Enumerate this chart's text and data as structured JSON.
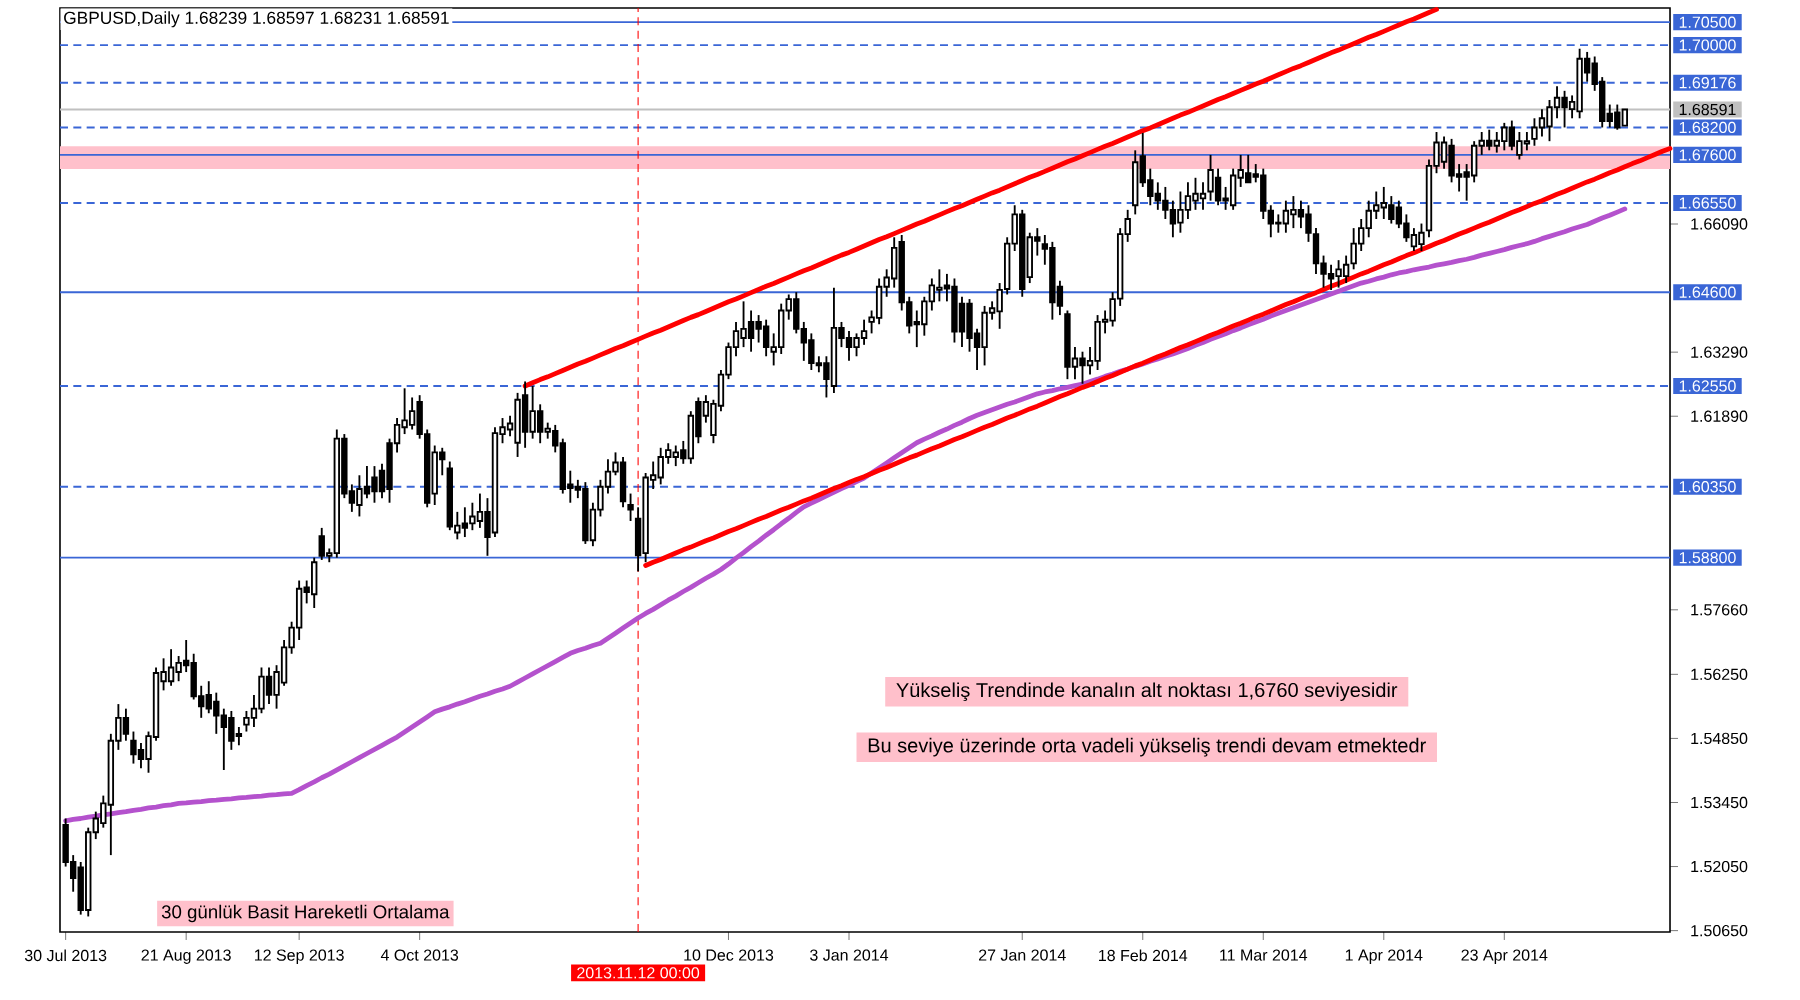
{
  "chart_data": {
    "type": "candlestick",
    "title": "GBPUSD,Daily 1.68239 1.68597 1.68231 1.68591",
    "color": "#000000",
    "categories": [
      "30 Jul 2013",
      null,
      null,
      null,
      null,
      null,
      null,
      null,
      null,
      null,
      null,
      null,
      null,
      null,
      null,
      null,
      "21 Aug 2013",
      null,
      null,
      null,
      null,
      null,
      null,
      null,
      null,
      null,
      null,
      null,
      null,
      null,
      null,
      "12 Sep 2013",
      null,
      null,
      null,
      null,
      null,
      null,
      null,
      null,
      null,
      null,
      null,
      null,
      null,
      null,
      null,
      "4 Oct 2013",
      null,
      null,
      null,
      null,
      null,
      null,
      null,
      null,
      null,
      null,
      null,
      null,
      null,
      null,
      null,
      null,
      null,
      null,
      null,
      null,
      null,
      null,
      null,
      null,
      null,
      null,
      null,
      null,
      "2013.11.12 00:00",
      null,
      null,
      null,
      null,
      null,
      null,
      null,
      null,
      null,
      null,
      null,
      "10 Dec 2013",
      null,
      null,
      null,
      null,
      null,
      null,
      null,
      null,
      null,
      null,
      null,
      null,
      null,
      null,
      null,
      "3 Jan 2014",
      null,
      null,
      null,
      null,
      null,
      null,
      null,
      null,
      null,
      null,
      null,
      null,
      null,
      null,
      null,
      null,
      null,
      null,
      null,
      null,
      null,
      null,
      "27 Jan 2014",
      null,
      null,
      null,
      null,
      null,
      null,
      null,
      null,
      null,
      null,
      null,
      null,
      null,
      null,
      null,
      "18 Feb 2014",
      null,
      null,
      null,
      null,
      null,
      null,
      null,
      null,
      null,
      null,
      null,
      null,
      null,
      null,
      null,
      "11 Mar 2014",
      null,
      null,
      null,
      null,
      null,
      null,
      null,
      null,
      null,
      null,
      null,
      null,
      null,
      null,
      null,
      "1 Apr 2014",
      null,
      null,
      null,
      null,
      null,
      null,
      null,
      null,
      null,
      null,
      null,
      null,
      null,
      null,
      null,
      "23 Apr 2014",
      null,
      null,
      null,
      null,
      null,
      null,
      null,
      null,
      null,
      null,
      null,
      null,
      null,
      null,
      null,
      null,
      null,
      null,
      null,
      null,
      null,
      null
    ],
    "ohlc": [
      [
        1.5296,
        1.531,
        1.5205,
        1.5215
      ],
      [
        1.5215,
        1.523,
        1.515,
        1.518
      ],
      [
        1.5203,
        1.5215,
        1.51,
        1.511
      ],
      [
        1.511,
        1.529,
        1.5096,
        1.528
      ],
      [
        1.528,
        1.5325,
        1.5265,
        1.531
      ],
      [
        1.53,
        1.536,
        1.529,
        1.5343
      ],
      [
        1.534,
        1.5495,
        1.523,
        1.548
      ],
      [
        1.548,
        1.556,
        1.546,
        1.553
      ],
      [
        1.553,
        1.555,
        1.548,
        1.5495
      ],
      [
        1.548,
        1.55,
        1.543,
        1.545
      ],
      [
        1.546,
        1.5475,
        1.542,
        1.544
      ],
      [
        1.544,
        1.55,
        1.541,
        1.549
      ],
      [
        1.5488,
        1.564,
        1.548,
        1.5628
      ],
      [
        1.561,
        1.566,
        1.559,
        1.563
      ],
      [
        1.561,
        1.568,
        1.56,
        1.564
      ],
      [
        1.563,
        1.5665,
        1.561,
        1.565
      ],
      [
        1.5655,
        1.57,
        1.563,
        1.5645
      ],
      [
        1.565,
        1.567,
        1.557,
        1.5577
      ],
      [
        1.5577,
        1.56,
        1.553,
        1.5555
      ],
      [
        1.558,
        1.561,
        1.554,
        1.555
      ],
      [
        1.5565,
        1.5585,
        1.5495,
        1.5535
      ],
      [
        1.5535,
        1.555,
        1.5416,
        1.551
      ],
      [
        1.553,
        1.5545,
        1.546,
        1.548
      ],
      [
        1.5495,
        1.551,
        1.547,
        1.549
      ],
      [
        1.5515,
        1.5545,
        1.55,
        1.553
      ],
      [
        1.553,
        1.558,
        1.551,
        1.555
      ],
      [
        1.555,
        1.564,
        1.554,
        1.562
      ],
      [
        1.562,
        1.564,
        1.556,
        1.558
      ],
      [
        1.558,
        1.5645,
        1.555,
        1.563
      ],
      [
        1.5607,
        1.57,
        1.56,
        1.5684
      ],
      [
        1.5684,
        1.574,
        1.567,
        1.5727
      ],
      [
        1.5727,
        1.583,
        1.57,
        1.5812
      ],
      [
        1.5815,
        1.583,
        1.578,
        1.5805
      ],
      [
        1.58,
        1.588,
        1.577,
        1.587
      ],
      [
        1.5927,
        1.5945,
        1.5875,
        1.5884
      ],
      [
        1.5884,
        1.59,
        1.587,
        1.589
      ],
      [
        1.589,
        1.616,
        1.588,
        1.614
      ],
      [
        1.614,
        1.615,
        1.601,
        1.602
      ],
      [
        1.6025,
        1.604,
        1.598,
        1.6
      ],
      [
        1.5995,
        1.606,
        1.597,
        1.603
      ],
      [
        1.6035,
        1.608,
        1.601,
        1.602
      ],
      [
        1.6055,
        1.608,
        1.6,
        1.6025
      ],
      [
        1.607,
        1.6085,
        1.601,
        1.6025
      ],
      [
        1.613,
        1.614,
        1.6,
        1.603
      ],
      [
        1.613,
        1.6185,
        1.611,
        1.617
      ],
      [
        1.6165,
        1.625,
        1.615,
        1.618
      ],
      [
        1.617,
        1.623,
        1.616,
        1.62
      ],
      [
        1.622,
        1.6235,
        1.614,
        1.615
      ],
      [
        1.615,
        1.616,
        1.599,
        1.6
      ],
      [
        1.602,
        1.6125,
        1.5995,
        1.611
      ],
      [
        1.611,
        1.612,
        1.606,
        1.6095
      ],
      [
        1.6075,
        1.609,
        1.594,
        1.5948
      ],
      [
        1.5935,
        1.598,
        1.592,
        1.595
      ],
      [
        1.5955,
        1.599,
        1.5925,
        1.5945
      ],
      [
        1.5955,
        1.6,
        1.594,
        1.597
      ],
      [
        1.596,
        1.602,
        1.5945,
        1.598
      ],
      [
        1.598,
        1.601,
        1.5884,
        1.5925
      ],
      [
        1.5935,
        1.6165,
        1.5925,
        1.6152
      ],
      [
        1.615,
        1.6185,
        1.613,
        1.6165
      ],
      [
        1.616,
        1.619,
        1.6145,
        1.6173
      ],
      [
        1.6131,
        1.624,
        1.61,
        1.6225
      ],
      [
        1.6235,
        1.6265,
        1.612,
        1.6155
      ],
      [
        1.6155,
        1.6255,
        1.614,
        1.62
      ],
      [
        1.62,
        1.6215,
        1.613,
        1.6155
      ],
      [
        1.6155,
        1.6175,
        1.614,
        1.6162
      ],
      [
        1.6157,
        1.617,
        1.611,
        1.6125
      ],
      [
        1.613,
        1.614,
        1.602,
        1.603
      ],
      [
        1.604,
        1.607,
        1.6,
        1.6032
      ],
      [
        1.6035,
        1.605,
        1.601,
        1.6028
      ],
      [
        1.603,
        1.6045,
        1.591,
        1.5918
      ],
      [
        1.5918,
        1.6,
        1.5905,
        1.5985
      ],
      [
        1.5985,
        1.605,
        1.597,
        1.6035
      ],
      [
        1.6035,
        1.6095,
        1.602,
        1.6068
      ],
      [
        1.6068,
        1.611,
        1.606,
        1.6088
      ],
      [
        1.6088,
        1.61,
        1.599,
        1.6003
      ],
      [
        1.5995,
        1.602,
        1.596,
        1.5985
      ],
      [
        1.5965,
        1.599,
        1.585,
        1.5885
      ],
      [
        1.589,
        1.6065,
        1.587,
        1.6055
      ],
      [
        1.605,
        1.609,
        1.603,
        1.606
      ],
      [
        1.6055,
        1.612,
        1.604,
        1.61
      ],
      [
        1.61,
        1.613,
        1.6085,
        1.6115
      ],
      [
        1.61,
        1.6125,
        1.608,
        1.611
      ],
      [
        1.6115,
        1.6135,
        1.6085,
        1.6097
      ],
      [
        1.6097,
        1.62,
        1.6085,
        1.619
      ],
      [
        1.622,
        1.623,
        1.613,
        1.6145
      ],
      [
        1.619,
        1.6235,
        1.6175,
        1.622
      ],
      [
        1.6148,
        1.6225,
        1.613,
        1.6216
      ],
      [
        1.6212,
        1.629,
        1.62,
        1.628
      ],
      [
        1.628,
        1.635,
        1.627,
        1.634
      ],
      [
        1.634,
        1.6395,
        1.632,
        1.6375
      ],
      [
        1.636,
        1.644,
        1.634,
        1.638
      ],
      [
        1.6395,
        1.642,
        1.633,
        1.636
      ],
      [
        1.6395,
        1.641,
        1.635,
        1.638
      ],
      [
        1.6385,
        1.64,
        1.632,
        1.634
      ],
      [
        1.633,
        1.637,
        1.63,
        1.634
      ],
      [
        1.634,
        1.6435,
        1.6325,
        1.642
      ],
      [
        1.642,
        1.6455,
        1.64,
        1.6445
      ],
      [
        1.6445,
        1.646,
        1.637,
        1.638
      ],
      [
        1.638,
        1.6395,
        1.631,
        1.635
      ],
      [
        1.6355,
        1.637,
        1.629,
        1.6305
      ],
      [
        1.6305,
        1.632,
        1.6285,
        1.63
      ],
      [
        1.6305,
        1.632,
        1.623,
        1.627
      ],
      [
        1.6255,
        1.647,
        1.624,
        1.6382
      ],
      [
        1.6382,
        1.6395,
        1.634,
        1.636
      ],
      [
        1.636,
        1.6375,
        1.631,
        1.634
      ],
      [
        1.634,
        1.637,
        1.632,
        1.636
      ],
      [
        1.636,
        1.64,
        1.6345,
        1.6375
      ],
      [
        1.6395,
        1.642,
        1.637,
        1.6405
      ],
      [
        1.6404,
        1.649,
        1.639,
        1.6472
      ],
      [
        1.6472,
        1.651,
        1.645,
        1.6492
      ],
      [
        1.649,
        1.658,
        1.647,
        1.6557
      ],
      [
        1.657,
        1.6585,
        1.642,
        1.6438
      ],
      [
        1.6438,
        1.645,
        1.637,
        1.6387
      ],
      [
        1.6395,
        1.642,
        1.634,
        1.639
      ],
      [
        1.639,
        1.645,
        1.6365,
        1.644
      ],
      [
        1.644,
        1.649,
        1.642,
        1.6475
      ],
      [
        1.6465,
        1.651,
        1.644,
        1.647
      ],
      [
        1.6475,
        1.65,
        1.644,
        1.6468
      ],
      [
        1.6472,
        1.649,
        1.635,
        1.6374
      ],
      [
        1.6435,
        1.645,
        1.634,
        1.6374
      ],
      [
        1.6435,
        1.6445,
        1.633,
        1.636
      ],
      [
        1.637,
        1.638,
        1.629,
        1.634
      ],
      [
        1.634,
        1.643,
        1.63,
        1.6415
      ],
      [
        1.6415,
        1.644,
        1.64,
        1.6425
      ],
      [
        1.6418,
        1.648,
        1.638,
        1.6465
      ],
      [
        1.6467,
        1.658,
        1.6455,
        1.6566
      ],
      [
        1.6566,
        1.665,
        1.655,
        1.663
      ],
      [
        1.663,
        1.664,
        1.645,
        1.6467
      ],
      [
        1.6493,
        1.659,
        1.648,
        1.658
      ],
      [
        1.658,
        1.66,
        1.654,
        1.6572
      ],
      [
        1.6565,
        1.6585,
        1.652,
        1.6555
      ],
      [
        1.6557,
        1.657,
        1.64,
        1.6438
      ],
      [
        1.6472,
        1.6485,
        1.641,
        1.643
      ],
      [
        1.6412,
        1.642,
        1.627,
        1.6297
      ],
      [
        1.6297,
        1.634,
        1.627,
        1.6315
      ],
      [
        1.6315,
        1.633,
        1.626,
        1.63
      ],
      [
        1.63,
        1.634,
        1.628,
        1.631
      ],
      [
        1.631,
        1.641,
        1.629,
        1.6395
      ],
      [
        1.6395,
        1.642,
        1.637,
        1.64
      ],
      [
        1.6398,
        1.646,
        1.6385,
        1.6445
      ],
      [
        1.6446,
        1.66,
        1.643,
        1.6587
      ],
      [
        1.6587,
        1.664,
        1.657,
        1.662
      ],
      [
        1.665,
        1.677,
        1.663,
        1.6744
      ],
      [
        1.6757,
        1.6808,
        1.669,
        1.67
      ],
      [
        1.6705,
        1.673,
        1.665,
        1.667
      ],
      [
        1.6675,
        1.67,
        1.664,
        1.666
      ],
      [
        1.666,
        1.669,
        1.662,
        1.664
      ],
      [
        1.664,
        1.666,
        1.658,
        1.661
      ],
      [
        1.6612,
        1.668,
        1.659,
        1.664
      ],
      [
        1.664,
        1.67,
        1.662,
        1.667
      ],
      [
        1.666,
        1.671,
        1.664,
        1.6675
      ],
      [
        1.6665,
        1.67,
        1.664,
        1.6675
      ],
      [
        1.668,
        1.676,
        1.666,
        1.6727
      ],
      [
        1.671,
        1.673,
        1.665,
        1.666
      ],
      [
        1.6665,
        1.669,
        1.664,
        1.666
      ],
      [
        1.665,
        1.673,
        1.664,
        1.6715
      ],
      [
        1.671,
        1.676,
        1.669,
        1.6727
      ],
      [
        1.672,
        1.676,
        1.67,
        1.67
      ],
      [
        1.6718,
        1.674,
        1.67,
        1.6712
      ],
      [
        1.6715,
        1.673,
        1.662,
        1.6638
      ],
      [
        1.6638,
        1.665,
        1.658,
        1.661
      ],
      [
        1.6612,
        1.663,
        1.659,
        1.661
      ],
      [
        1.661,
        1.666,
        1.659,
        1.6638
      ],
      [
        1.663,
        1.667,
        1.66,
        1.664
      ],
      [
        1.664,
        1.666,
        1.66,
        1.6625
      ],
      [
        1.663,
        1.665,
        1.657,
        1.659
      ],
      [
        1.6587,
        1.66,
        1.65,
        1.6523
      ],
      [
        1.6523,
        1.654,
        1.647,
        1.65
      ],
      [
        1.65,
        1.652,
        1.6465,
        1.649
      ],
      [
        1.6495,
        1.653,
        1.647,
        1.651
      ],
      [
        1.6495,
        1.654,
        1.648,
        1.652
      ],
      [
        1.6523,
        1.66,
        1.651,
        1.6566
      ],
      [
        1.6566,
        1.662,
        1.655,
        1.66
      ],
      [
        1.66,
        1.666,
        1.658,
        1.6638
      ],
      [
        1.6638,
        1.668,
        1.662,
        1.665
      ],
      [
        1.6645,
        1.669,
        1.662,
        1.6655
      ],
      [
        1.665,
        1.667,
        1.661,
        1.662
      ],
      [
        1.6645,
        1.666,
        1.66,
        1.661
      ],
      [
        1.661,
        1.663,
        1.657,
        1.658
      ],
      [
        1.656,
        1.66,
        1.655,
        1.6585
      ],
      [
        1.6565,
        1.661,
        1.655,
        1.659
      ],
      [
        1.6595,
        1.675,
        1.658,
        1.6736
      ],
      [
        1.6736,
        1.681,
        1.672,
        1.6787
      ],
      [
        1.6745,
        1.68,
        1.673,
        1.6787
      ],
      [
        1.678,
        1.6795,
        1.67,
        1.6715
      ],
      [
        1.6718,
        1.674,
        1.668,
        1.6712
      ],
      [
        1.6722,
        1.674,
        1.666,
        1.6712
      ],
      [
        1.6715,
        1.679,
        1.67,
        1.678
      ],
      [
        1.678,
        1.681,
        1.676,
        1.6791
      ],
      [
        1.6791,
        1.6815,
        1.677,
        1.678
      ],
      [
        1.678,
        1.681,
        1.6765,
        1.6791
      ],
      [
        1.679,
        1.683,
        1.677,
        1.682
      ],
      [
        1.682,
        1.6835,
        1.677,
        1.678
      ],
      [
        1.676,
        1.681,
        1.675,
        1.679
      ],
      [
        1.6785,
        1.681,
        1.677,
        1.679
      ],
      [
        1.6795,
        1.684,
        1.678,
        1.682
      ],
      [
        1.682,
        1.686,
        1.68,
        1.684
      ],
      [
        1.6822,
        1.688,
        1.679,
        1.6864
      ],
      [
        1.6864,
        1.691,
        1.684,
        1.6885
      ],
      [
        1.6885,
        1.69,
        1.682,
        1.6864
      ],
      [
        1.686,
        1.689,
        1.684,
        1.6876
      ],
      [
        1.6855,
        1.6992,
        1.684,
        1.697
      ],
      [
        1.697,
        1.6985,
        1.692,
        1.694
      ],
      [
        1.696,
        1.6975,
        1.69,
        1.6915
      ],
      [
        1.692,
        1.693,
        1.682,
        1.6834
      ],
      [
        1.685,
        1.687,
        1.682,
        1.6834
      ],
      [
        1.6853,
        1.687,
        1.6815,
        1.682
      ],
      [
        1.68239,
        1.68597,
        1.68231,
        1.68591
      ],
      null,
      null,
      null,
      null,
      null,
      null
    ],
    "ylim": [
      1.5062,
      1.7081
    ],
    "yticks": [
      {
        "value": 1.6609,
        "label": "1.66090"
      },
      {
        "value": 1.6329,
        "label": "1.63290"
      },
      {
        "value": 1.6189,
        "label": "1.61890"
      },
      {
        "value": 1.5766,
        "label": "1.57660"
      },
      {
        "value": 1.5625,
        "label": "1.56250"
      },
      {
        "value": 1.5485,
        "label": "1.54850"
      },
      {
        "value": 1.5345,
        "label": "1.53450"
      },
      {
        "value": 1.5205,
        "label": "1.52050"
      },
      {
        "value": 1.5065,
        "label": "1.50650"
      }
    ],
    "series": [
      {
        "type": "line",
        "color": "#b452cd",
        "values": [
          1.5305,
          1.5308,
          1.531,
          1.5313,
          1.5315,
          1.5318,
          1.532,
          1.5323,
          1.5325,
          1.5328,
          1.533,
          1.5333,
          1.5335,
          1.5338,
          1.534,
          1.5343,
          1.5344,
          1.5346,
          1.5347,
          1.5349,
          1.535,
          1.5352,
          1.5353,
          1.5355,
          1.5356,
          1.5358,
          1.5359,
          1.5361,
          1.5362,
          1.5364,
          1.5365,
          1.5373,
          1.5382,
          1.539,
          1.5399,
          1.5407,
          1.5416,
          1.5425,
          1.5434,
          1.5443,
          1.5452,
          1.5461,
          1.547,
          1.5479,
          1.5488,
          1.5499,
          1.551,
          1.5521,
          1.5532,
          1.5543,
          1.5549,
          1.5554,
          1.556,
          1.5565,
          1.5571,
          1.5577,
          1.5582,
          1.5588,
          1.5593,
          1.5599,
          1.5608,
          1.5617,
          1.5626,
          1.5635,
          1.5644,
          1.5653,
          1.5662,
          1.5671,
          1.5677,
          1.5682,
          1.5688,
          1.5693,
          1.5704,
          1.5715,
          1.5726,
          1.5737,
          1.5748,
          1.5758,
          1.5767,
          1.5777,
          1.5787,
          1.5796,
          1.5806,
          1.5815,
          1.5825,
          1.5835,
          1.5844,
          1.5854,
          1.5866,
          1.5879,
          1.5891,
          1.5904,
          1.5916,
          1.5929,
          1.5941,
          1.5954,
          1.5966,
          1.5979,
          1.5991,
          1.5999,
          1.6007,
          1.6015,
          1.6023,
          1.6031,
          1.6038,
          1.6046,
          1.6054,
          1.6065,
          1.6076,
          1.6087,
          1.6098,
          1.6109,
          1.612,
          1.6131,
          1.6139,
          1.6146,
          1.6154,
          1.6161,
          1.6169,
          1.6176,
          1.6184,
          1.6191,
          1.6197,
          1.6203,
          1.6209,
          1.6215,
          1.622,
          1.6226,
          1.6232,
          1.6238,
          1.6242,
          1.6245,
          1.6249,
          1.6252,
          1.6256,
          1.6259,
          1.6265,
          1.627,
          1.6276,
          1.6281,
          1.6287,
          1.6292,
          1.6298,
          1.6303,
          1.6309,
          1.6314,
          1.632,
          1.6325,
          1.6331,
          1.6337,
          1.6344,
          1.635,
          1.6357,
          1.6363,
          1.6369,
          1.6376,
          1.6382,
          1.6389,
          1.6395,
          1.6401,
          1.6408,
          1.6414,
          1.642,
          1.6426,
          1.6432,
          1.6438,
          1.6444,
          1.645,
          1.6456,
          1.6462,
          1.6468,
          1.6474,
          1.648,
          1.6484,
          1.6489,
          1.6493,
          1.6498,
          1.6502,
          1.6505,
          1.6509,
          1.6512,
          1.6515,
          1.6519,
          1.6522,
          1.6525,
          1.6529,
          1.6532,
          1.6536,
          1.6541,
          1.6545,
          1.6549,
          1.6553,
          1.6558,
          1.6562,
          1.6566,
          1.6571,
          1.6577,
          1.6582,
          1.6587,
          1.6592,
          1.6598,
          1.6603,
          1.6608,
          1.6615,
          1.6622,
          1.6628,
          1.6635,
          1.6642,
          null,
          null,
          null,
          null,
          null,
          null
        ]
      },
      {
        "type": "line",
        "color": "#ff0000",
        "values": [
          null,
          null,
          null,
          null,
          null,
          null,
          null,
          null,
          null,
          null,
          null,
          null,
          null,
          null,
          null,
          null,
          null,
          null,
          null,
          null,
          null,
          null,
          null,
          null,
          null,
          null,
          null,
          null,
          null,
          null,
          null,
          null,
          null,
          null,
          null,
          null,
          null,
          null,
          null,
          null,
          null,
          null,
          null,
          null,
          null,
          null,
          null,
          null,
          null,
          null,
          null,
          null,
          null,
          null,
          null,
          null,
          null,
          null,
          null,
          null,
          null,
          1.6255,
          1.6262,
          1.6269,
          1.6275,
          1.6282,
          1.6289,
          1.6296,
          1.6303,
          1.6309,
          1.6316,
          1.6323,
          1.633,
          1.6337,
          1.6343,
          1.635,
          1.6357,
          1.6364,
          1.6371,
          1.6377,
          1.6384,
          1.6391,
          1.6398,
          1.6405,
          1.6411,
          1.6418,
          1.6425,
          1.6432,
          1.6439,
          1.6445,
          1.6452,
          1.6459,
          1.6466,
          1.6473,
          1.6479,
          1.6486,
          1.6493,
          1.65,
          1.6507,
          1.6513,
          1.652,
          1.6527,
          1.6534,
          1.6541,
          1.6547,
          1.6554,
          1.6561,
          1.6568,
          1.6575,
          1.6581,
          1.6588,
          1.6595,
          1.6602,
          1.6609,
          1.6615,
          1.6622,
          1.6629,
          1.6636,
          1.6643,
          1.6649,
          1.6656,
          1.6663,
          1.667,
          1.6677,
          1.6683,
          1.669,
          1.6697,
          1.6704,
          1.6711,
          1.6717,
          1.6724,
          1.6731,
          1.6738,
          1.6745,
          1.6751,
          1.6758,
          1.6765,
          1.6772,
          1.6779,
          1.6785,
          1.6792,
          1.6799,
          1.6806,
          1.6813,
          1.6819,
          1.6826,
          1.6833,
          1.684,
          1.6847,
          1.6853,
          1.686,
          1.6867,
          1.6874,
          1.6881,
          1.6887,
          1.6894,
          1.6901,
          1.6908,
          1.6915,
          1.6921,
          1.6928,
          1.6935,
          1.6942,
          1.6949,
          1.6955,
          1.6962,
          1.6969,
          1.6976,
          1.6983,
          1.6989,
          1.6996,
          1.7003,
          1.701,
          1.7017,
          1.7023,
          1.703,
          1.7037,
          1.7044,
          1.7051,
          1.7057,
          1.7064,
          1.7071,
          1.7078,
          null,
          null,
          null,
          null,
          null,
          null,
          null,
          null,
          null,
          null,
          null,
          null,
          null,
          null,
          null,
          null,
          null,
          null,
          null,
          null,
          null,
          null,
          null,
          null,
          null,
          null,
          null,
          null,
          null,
          null,
          null
        ]
      },
      {
        "type": "line",
        "color": "#ff0000",
        "values": [
          null,
          null,
          null,
          null,
          null,
          null,
          null,
          null,
          null,
          null,
          null,
          null,
          null,
          null,
          null,
          null,
          null,
          null,
          null,
          null,
          null,
          null,
          null,
          null,
          null,
          null,
          null,
          null,
          null,
          null,
          null,
          null,
          null,
          null,
          null,
          null,
          null,
          null,
          null,
          null,
          null,
          null,
          null,
          null,
          null,
          null,
          null,
          null,
          null,
          null,
          null,
          null,
          null,
          null,
          null,
          null,
          null,
          null,
          null,
          null,
          null,
          null,
          null,
          null,
          null,
          null,
          null,
          null,
          null,
          null,
          null,
          null,
          null,
          null,
          null,
          null,
          null,
          1.5863,
          1.587,
          1.5876,
          1.5883,
          1.589,
          1.5897,
          1.5903,
          1.591,
          1.5917,
          1.5923,
          1.593,
          1.5937,
          1.5943,
          1.595,
          1.5957,
          1.5964,
          1.597,
          1.5977,
          1.5984,
          1.599,
          1.5997,
          1.6004,
          1.601,
          1.6017,
          1.6024,
          1.6031,
          1.6037,
          1.6044,
          1.6051,
          1.6057,
          1.6064,
          1.6071,
          1.6077,
          1.6084,
          1.6091,
          1.6098,
          1.6104,
          1.6111,
          1.6118,
          1.6124,
          1.6131,
          1.6138,
          1.6144,
          1.6151,
          1.6158,
          1.6165,
          1.6171,
          1.6178,
          1.6185,
          1.6191,
          1.6198,
          1.6205,
          1.6211,
          1.6218,
          1.6225,
          1.6232,
          1.6238,
          1.6245,
          1.6252,
          1.6258,
          1.6265,
          1.6272,
          1.6278,
          1.6285,
          1.6292,
          1.6299,
          1.6305,
          1.6312,
          1.6319,
          1.6325,
          1.6332,
          1.6339,
          1.6345,
          1.6352,
          1.6359,
          1.6366,
          1.6372,
          1.6379,
          1.6386,
          1.6392,
          1.6399,
          1.6406,
          1.6412,
          1.6419,
          1.6426,
          1.6433,
          1.6439,
          1.6446,
          1.6453,
          1.6459,
          1.6466,
          1.6473,
          1.6479,
          1.6486,
          1.6493,
          1.65,
          1.6506,
          1.6513,
          1.652,
          1.6526,
          1.6533,
          1.654,
          1.6546,
          1.6553,
          1.656,
          1.6567,
          1.6573,
          1.658,
          1.6587,
          1.6593,
          1.66,
          1.6607,
          1.6613,
          1.662,
          1.6627,
          1.6634,
          1.664,
          1.6647,
          1.6654,
          1.666,
          1.6667,
          1.6674,
          1.668,
          1.6687,
          1.6694,
          1.6701,
          1.6707,
          1.6714,
          1.6721,
          1.6727,
          1.6734,
          1.6741,
          1.6747,
          1.6754,
          1.6761,
          1.6768,
          1.6774
        ]
      }
    ],
    "bands": [
      {
        "axis": "y",
        "from": 1.6729,
        "to": 1.6779,
        "color": "#ffc0cb"
      }
    ],
    "ref_lines": [
      {
        "axis": "y",
        "value": 1.705,
        "label": "1.70500",
        "color": "#3a66d6",
        "line_style": "solid"
      },
      {
        "axis": "y",
        "value": 1.7,
        "label": "1.70000",
        "color": "#3a66d6",
        "line_style": "dashed"
      },
      {
        "axis": "y",
        "value": 1.69176,
        "label": "1.69176",
        "color": "#3a66d6",
        "line_style": "dashed"
      },
      {
        "axis": "y",
        "value": 1.68591,
        "label": "1.68591",
        "color": "#c0c0c0",
        "line_style": "solid"
      },
      {
        "axis": "y",
        "value": 1.682,
        "label": "1.68200",
        "color": "#3a66d6",
        "line_style": "dashed"
      },
      {
        "axis": "y",
        "value": 1.676,
        "label": "1.67600",
        "color": "#3a66d6",
        "line_style": "solid"
      },
      {
        "axis": "y",
        "value": 1.6655,
        "label": "1.66550",
        "color": "#3a66d6",
        "line_style": "dashed"
      },
      {
        "axis": "y",
        "value": 1.646,
        "label": "1.64600",
        "color": "#3a66d6",
        "line_style": "solid"
      },
      {
        "axis": "y",
        "value": 1.6255,
        "label": "1.62550",
        "color": "#3a66d6",
        "line_style": "dashed"
      },
      {
        "axis": "y",
        "value": 1.6035,
        "label": "1.60350",
        "color": "#3a66d6",
        "line_style": "dashed"
      },
      {
        "axis": "y",
        "value": 1.588,
        "label": "1.58800",
        "color": "#3a66d6",
        "line_style": "solid"
      },
      {
        "axis": "x",
        "value": "2013.11.12 00:00",
        "color": "#ff0000",
        "line_style": "dashed"
      }
    ],
    "annotations": [
      "30 günlük Basit Hareketli Ortalama",
      "Yükseliş Trendinde kanalın alt noktası 1,6760 seviyesidir",
      "Bu seviye üzerinde orta vadeli yükseliş trendi devam etmektedr"
    ]
  }
}
